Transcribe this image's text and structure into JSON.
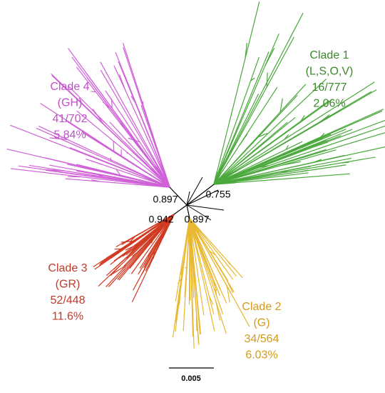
{
  "clades": [
    {
      "lines": [
        "Clade 1",
        "(L,S,O,V)",
        "16/777",
        "2.06%"
      ]
    },
    {
      "lines": [
        "Clade 2",
        "(G)",
        "34/564",
        "6.03%"
      ]
    },
    {
      "lines": [
        "Clade 3",
        "(GR)",
        "52/448",
        "11.6%"
      ]
    },
    {
      "lines": [
        "Clade 4",
        "(GH)",
        "41/702",
        "5.84%"
      ]
    }
  ],
  "bootstrap": [
    "0.897",
    "0.755",
    "0.942",
    "0.897"
  ],
  "scale_bar": "0.005"
}
